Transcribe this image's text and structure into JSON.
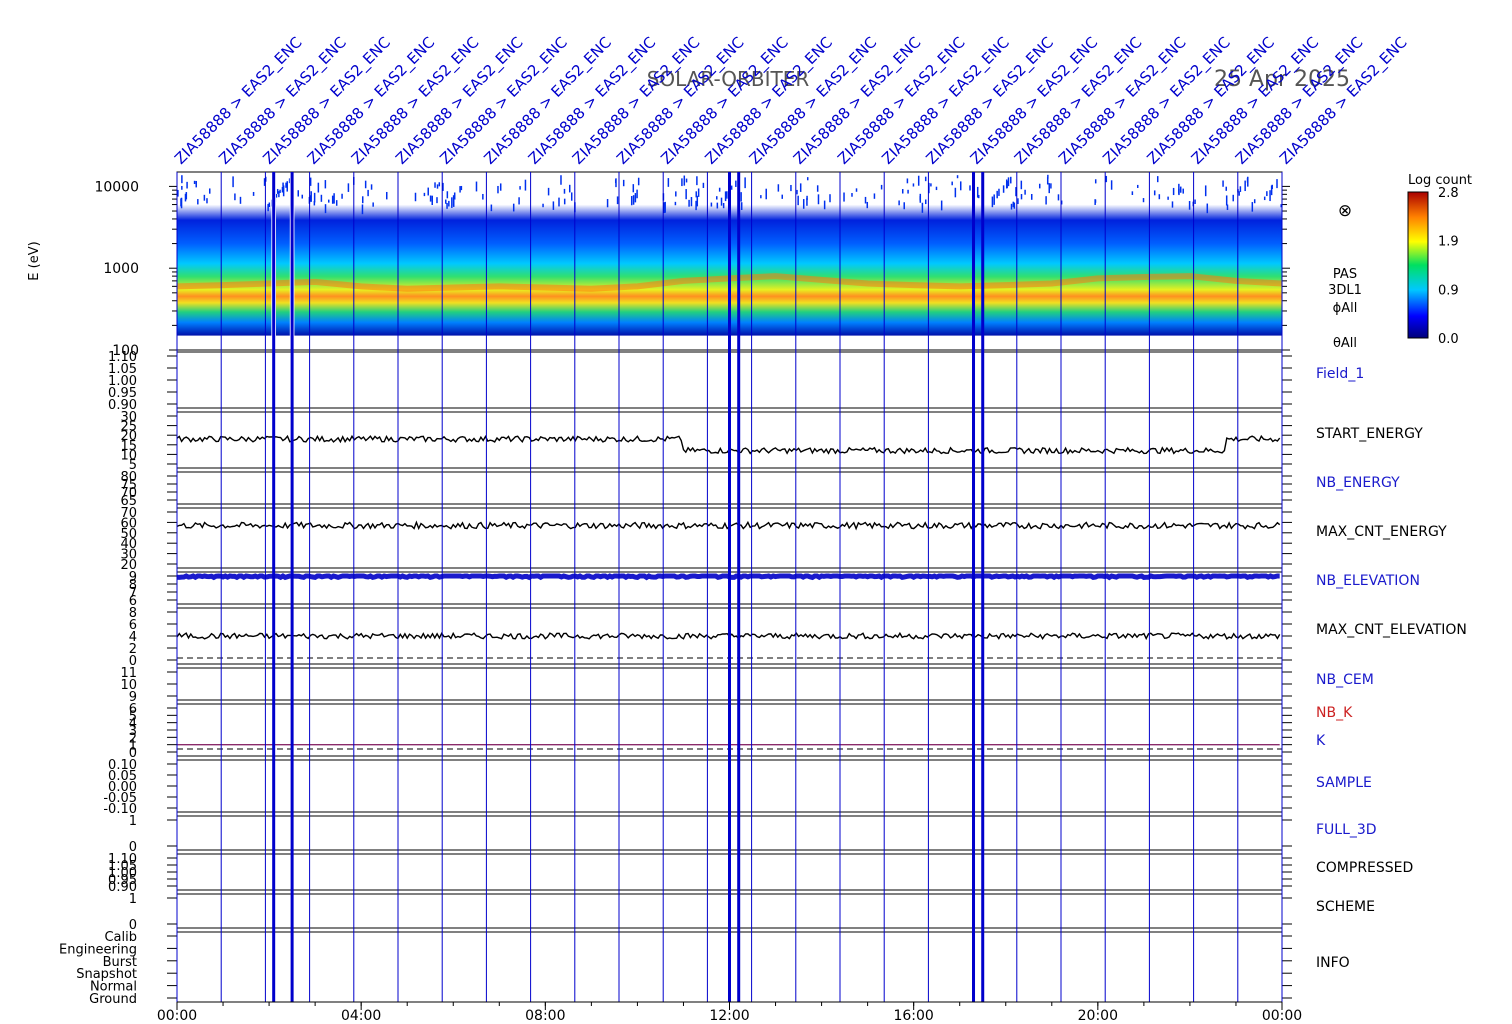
{
  "header": {
    "mission": "SOLAR-ORBITER",
    "date": "25 Apr 2025",
    "event_label": "ZIA58888 > EAS2_ENC",
    "event_count": 26
  },
  "colors": {
    "axis": "#000000",
    "event_line": "#0000cc",
    "label_blue": "#1a1acc",
    "label_red": "#cc2222",
    "trace": "#000000"
  },
  "chart_data": [
    {
      "type": "heatmap",
      "panel": "energy-spectrogram",
      "ylabel": "E (eV)",
      "yscale": "log",
      "ylim": [
        100,
        15000
      ],
      "y_ticks": [
        "10000",
        "1000",
        "100"
      ],
      "y_tick_values": [
        10000,
        1000,
        100
      ],
      "side_labels": [
        "PAS",
        "3DL1",
        "ϕAll",
        "θAll"
      ],
      "colorbar": {
        "title": "Log count",
        "ticks": [
          "2.8",
          "1.9",
          "0.9",
          "0.0"
        ],
        "range": [
          0.0,
          2.8
        ]
      },
      "data_gaps_hours": [
        [
          2.05,
          2.15
        ],
        [
          2.45,
          2.55
        ]
      ],
      "peak_energy_profile_eV": [
        [
          0,
          600
        ],
        [
          1,
          620
        ],
        [
          2,
          650
        ],
        [
          3,
          680
        ],
        [
          4,
          600
        ],
        [
          5,
          560
        ],
        [
          6,
          580
        ],
        [
          7,
          600
        ],
        [
          8,
          580
        ],
        [
          9,
          560
        ],
        [
          10,
          600
        ],
        [
          11,
          700
        ],
        [
          12,
          750
        ],
        [
          13,
          800
        ],
        [
          14,
          720
        ],
        [
          15,
          650
        ],
        [
          16,
          620
        ],
        [
          17,
          600
        ],
        [
          18,
          620
        ],
        [
          19,
          650
        ],
        [
          20,
          750
        ],
        [
          21,
          780
        ],
        [
          22,
          800
        ],
        [
          23,
          700
        ],
        [
          24,
          650
        ]
      ]
    },
    {
      "type": "line",
      "panel": "field-1",
      "series_label": "Field_1",
      "label_color": "blue",
      "y_ticks": [
        "1.10",
        "1.05",
        "1.00",
        "0.95",
        "0.90"
      ],
      "ylim": [
        0.9,
        1.1
      ]
    },
    {
      "type": "line",
      "panel": "start-energy",
      "series_label": "START_ENERGY",
      "label_color": "black",
      "y_ticks": [
        "30",
        "25",
        "20",
        "15",
        "10",
        "5"
      ],
      "ylim": [
        5,
        30
      ],
      "typical_value": 18,
      "quiet_value": 12
    },
    {
      "type": "line",
      "panel": "nb-energy",
      "series_label": "NB_ENERGY",
      "label_color": "blue",
      "y_ticks": [
        "80",
        "75",
        "70",
        "65"
      ],
      "ylim": [
        65,
        80
      ]
    },
    {
      "type": "line",
      "panel": "max-cnt-energy",
      "series_label": "MAX_CNT_ENERGY",
      "label_color": "black",
      "y_ticks": [
        "70",
        "60",
        "50",
        "40",
        "30",
        "20"
      ],
      "ylim": [
        20,
        70
      ],
      "typical_value": 57
    },
    {
      "type": "line",
      "panel": "nb-elevation",
      "series_label": "NB_ELEVATION",
      "label_color": "blue",
      "y_ticks": [
        "9",
        "8",
        "7",
        "6"
      ],
      "ylim": [
        6,
        9
      ],
      "typical_value": 9
    },
    {
      "type": "line",
      "panel": "max-cnt-elevation",
      "series_label": "MAX_CNT_ELEVATION",
      "label_color": "black",
      "y_ticks": [
        "8",
        "6",
        "4",
        "2",
        "0"
      ],
      "ylim": [
        0,
        8
      ],
      "typical_value": 4
    },
    {
      "type": "line",
      "panel": "nb-cem",
      "series_label": "NB_CEM",
      "label_color": "blue",
      "y_ticks": [
        "11",
        "10",
        "9"
      ],
      "ylim": [
        9,
        11
      ]
    },
    {
      "type": "line",
      "panel": "nb-k",
      "series_labels": [
        "NB_K",
        "K"
      ],
      "label_colors": [
        "red",
        "blue"
      ],
      "y_ticks": [
        "6",
        "5",
        "4",
        "3",
        "2",
        "1",
        "0"
      ],
      "ylim": [
        0,
        6
      ],
      "typical_value": 1
    },
    {
      "type": "line",
      "panel": "sample",
      "series_label": "SAMPLE",
      "label_color": "blue",
      "y_ticks": [
        "0.10",
        "0.05",
        "0.00",
        "-0.05",
        "-0.10"
      ],
      "ylim": [
        -0.1,
        0.1
      ]
    },
    {
      "type": "line",
      "panel": "full-3d",
      "series_label": "FULL_3D",
      "label_color": "blue",
      "y_ticks": [
        "1",
        "0"
      ],
      "ylim": [
        0,
        1
      ]
    },
    {
      "type": "line",
      "panel": "compressed",
      "series_label": "COMPRESSED",
      "label_color": "black",
      "y_ticks": [
        "1.10",
        "1.05",
        "1.00",
        "0.95",
        "0.90"
      ],
      "ylim": [
        0.9,
        1.1
      ]
    },
    {
      "type": "line",
      "panel": "scheme",
      "series_label": "SCHEME",
      "label_color": "black",
      "y_ticks": [
        "1",
        "0"
      ],
      "ylim": [
        0,
        1
      ]
    },
    {
      "type": "line",
      "panel": "info",
      "series_label": "INFO",
      "label_color": "black",
      "y_ticks": [
        "Calib",
        "Engineering",
        "Burst",
        "Snapshot",
        "Normal",
        "Ground"
      ]
    }
  ],
  "x_axis": {
    "ticks": [
      "00:00",
      "04:00",
      "08:00",
      "12:00",
      "16:00",
      "20:00",
      "00:00"
    ],
    "tick_hours": [
      0,
      4,
      8,
      12,
      16,
      20,
      24
    ],
    "xlim_hours": [
      0,
      24
    ]
  }
}
